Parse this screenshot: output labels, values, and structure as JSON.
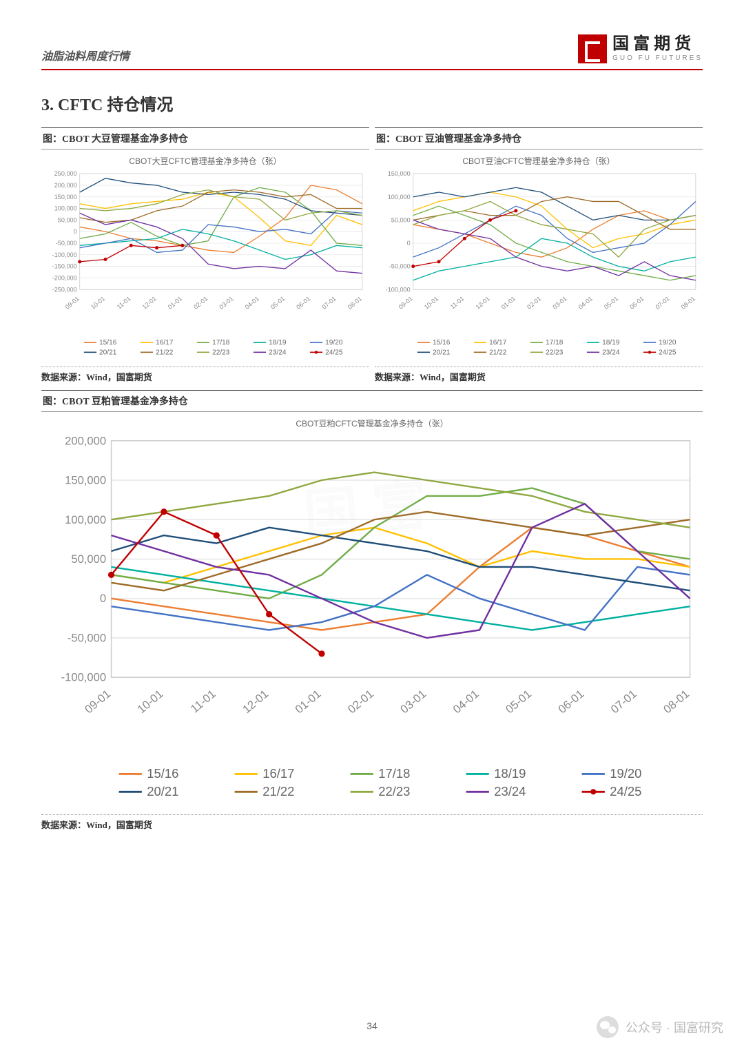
{
  "header": {
    "left": "油脂油料周度行情",
    "logo_cn": "国富期货",
    "logo_en": "GUO FU FUTURES"
  },
  "section_title": "3.  CFTC 持仓情况",
  "page_number": "34",
  "footer_brand": "公众号 · 国富研究",
  "series_meta": {
    "labels": [
      "15/16",
      "16/17",
      "17/18",
      "18/19",
      "19/20",
      "20/21",
      "21/22",
      "22/23",
      "23/24",
      "24/25"
    ],
    "colors": [
      "#ed7d31",
      "#ffc000",
      "#70ad47",
      "#00b0a0",
      "#4472c4",
      "#1f4e79",
      "#9e6b28",
      "#8fa840",
      "#7030a0",
      "#c00000"
    ],
    "marker_last": true,
    "line_width": 1.3,
    "legend_fontsize": 10,
    "axis_fontsize": 9,
    "grid_color": "#e6e6e6",
    "background": "#ffffff"
  },
  "x_categories": [
    "09-01",
    "10-01",
    "11-01",
    "12-01",
    "01-01",
    "02-01",
    "03-01",
    "04-01",
    "05-01",
    "06-01",
    "07-01",
    "08-01"
  ],
  "chart1": {
    "caption": "图：CBOT 大豆管理基金净多持仓",
    "subtitle": "CBOT大豆CFTC管理基金净多持仓（张）",
    "source": "数据来源：Wind，国富期货",
    "ylim": [
      -250000,
      250000
    ],
    "ytick_step": 50000,
    "series": {
      "15/16": [
        20000,
        0,
        -30000,
        -40000,
        -60000,
        -80000,
        -90000,
        -20000,
        60000,
        200000,
        180000,
        120000
      ],
      "16/17": [
        120000,
        100000,
        120000,
        130000,
        140000,
        170000,
        150000,
        60000,
        -40000,
        -60000,
        70000,
        30000
      ],
      "17/18": [
        -30000,
        -10000,
        40000,
        -20000,
        -60000,
        -40000,
        150000,
        190000,
        170000,
        90000,
        -50000,
        -60000
      ],
      "18/19": [
        -60000,
        -50000,
        -40000,
        -30000,
        10000,
        -10000,
        -40000,
        -80000,
        -120000,
        -100000,
        -60000,
        -70000
      ],
      "19/20": [
        -70000,
        -50000,
        -30000,
        -90000,
        -80000,
        30000,
        20000,
        0,
        10000,
        -10000,
        90000,
        80000
      ],
      "20/21": [
        170000,
        230000,
        210000,
        200000,
        170000,
        160000,
        170000,
        160000,
        140000,
        90000,
        80000,
        70000
      ],
      "21/22": [
        60000,
        40000,
        50000,
        90000,
        110000,
        170000,
        180000,
        170000,
        150000,
        160000,
        100000,
        100000
      ],
      "22/23": [
        100000,
        90000,
        100000,
        120000,
        160000,
        180000,
        150000,
        140000,
        50000,
        80000,
        90000,
        70000
      ],
      "23/24": [
        80000,
        30000,
        50000,
        20000,
        -30000,
        -140000,
        -160000,
        -150000,
        -160000,
        -80000,
        -170000,
        -180000
      ],
      "24/25": [
        -130000,
        -120000,
        -60000,
        -70000,
        -60000
      ]
    }
  },
  "chart2": {
    "caption": "图：CBOT 豆油管理基金净多持仓",
    "subtitle": "CBOT豆油CFTC管理基金净多持仓（张）",
    "source": "数据来源：Wind，国富期货",
    "ylim": [
      -100000,
      150000
    ],
    "ytick_step": 50000,
    "series": {
      "15/16": [
        40000,
        30000,
        20000,
        0,
        -20000,
        -30000,
        -10000,
        30000,
        60000,
        70000,
        50000,
        60000
      ],
      "16/17": [
        70000,
        90000,
        100000,
        110000,
        100000,
        80000,
        30000,
        -10000,
        10000,
        20000,
        40000,
        50000
      ],
      "17/18": [
        60000,
        80000,
        60000,
        40000,
        0,
        -20000,
        -40000,
        -50000,
        -60000,
        -70000,
        -80000,
        -70000
      ],
      "18/19": [
        -80000,
        -60000,
        -50000,
        -40000,
        -30000,
        10000,
        0,
        -30000,
        -50000,
        -60000,
        -40000,
        -30000
      ],
      "19/20": [
        -30000,
        -10000,
        20000,
        50000,
        80000,
        60000,
        10000,
        -20000,
        -10000,
        0,
        40000,
        90000
      ],
      "20/21": [
        100000,
        110000,
        100000,
        110000,
        120000,
        110000,
        80000,
        50000,
        60000,
        50000,
        50000,
        60000
      ],
      "21/22": [
        50000,
        60000,
        70000,
        60000,
        60000,
        90000,
        100000,
        90000,
        90000,
        60000,
        30000,
        30000
      ],
      "22/23": [
        40000,
        60000,
        70000,
        90000,
        60000,
        40000,
        30000,
        20000,
        -30000,
        30000,
        50000,
        60000
      ],
      "23/24": [
        50000,
        30000,
        20000,
        10000,
        -30000,
        -50000,
        -60000,
        -50000,
        -70000,
        -40000,
        -70000,
        -80000
      ],
      "24/25": [
        -50000,
        -40000,
        10000,
        50000,
        70000
      ]
    }
  },
  "chart3": {
    "caption": "图：CBOT 豆粕管理基金净多持仓",
    "subtitle": "CBOT豆粕CFTC管理基金净多持仓（张）",
    "source": "数据来源：Wind，国富期货",
    "ylim": [
      -100000,
      200000
    ],
    "ytick_step": 50000,
    "series": {
      "15/16": [
        0,
        -10000,
        -20000,
        -30000,
        -40000,
        -30000,
        -20000,
        40000,
        90000,
        80000,
        60000,
        40000
      ],
      "16/17": [
        30000,
        20000,
        40000,
        60000,
        80000,
        90000,
        70000,
        40000,
        60000,
        50000,
        50000,
        40000
      ],
      "17/18": [
        30000,
        20000,
        10000,
        0,
        30000,
        90000,
        130000,
        130000,
        140000,
        120000,
        60000,
        50000
      ],
      "18/19": [
        40000,
        30000,
        20000,
        10000,
        0,
        -10000,
        -20000,
        -30000,
        -40000,
        -30000,
        -20000,
        -10000
      ],
      "19/20": [
        -10000,
        -20000,
        -30000,
        -40000,
        -30000,
        -10000,
        30000,
        0,
        -20000,
        -40000,
        40000,
        30000
      ],
      "20/21": [
        60000,
        80000,
        70000,
        90000,
        80000,
        70000,
        60000,
        40000,
        40000,
        30000,
        20000,
        10000
      ],
      "21/22": [
        20000,
        10000,
        30000,
        50000,
        70000,
        100000,
        110000,
        100000,
        90000,
        80000,
        90000,
        100000
      ],
      "22/23": [
        100000,
        110000,
        120000,
        130000,
        150000,
        160000,
        150000,
        140000,
        130000,
        110000,
        100000,
        90000
      ],
      "23/24": [
        80000,
        60000,
        40000,
        30000,
        0,
        -30000,
        -50000,
        -40000,
        90000,
        120000,
        60000,
        0
      ],
      "24/25": [
        30000,
        110000,
        80000,
        -20000,
        -70000
      ]
    }
  }
}
